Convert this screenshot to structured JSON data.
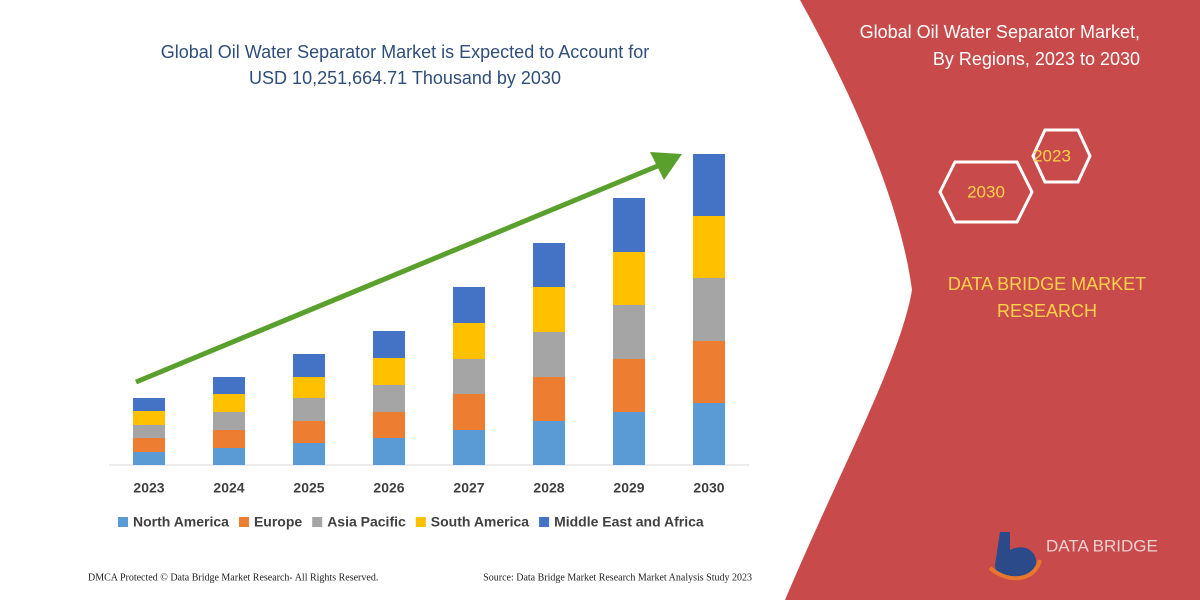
{
  "chart_data": {
    "type": "stacked_bar",
    "title": [
      "Global Oil Water Separator Market is Expected to Account for",
      "USD 10,251,664.71 Thousand by 2030"
    ],
    "categories": [
      "2023",
      "2024",
      "2025",
      "2026",
      "2027",
      "2028",
      "2029",
      "2030"
    ],
    "series": [
      {
        "name": "North America",
        "color": "#5b9bd5",
        "values": [
          13,
          17,
          22,
          27,
          35,
          44,
          53,
          62
        ]
      },
      {
        "name": "Europe",
        "color": "#ed7d31",
        "values": [
          14,
          18,
          22,
          26,
          36,
          44,
          53,
          62
        ]
      },
      {
        "name": "Asia Pacific",
        "color": "#a5a5a5",
        "values": [
          13,
          18,
          23,
          27,
          35,
          45,
          54,
          63
        ]
      },
      {
        "name": "South America",
        "color": "#ffc000",
        "values": [
          14,
          18,
          21,
          27,
          36,
          45,
          53,
          62
        ]
      },
      {
        "name": "Middle East and Africa",
        "color": "#4472c4",
        "values": [
          13,
          17,
          23,
          27,
          36,
          44,
          54,
          62
        ]
      }
    ],
    "ylim": [
      0,
      320
    ],
    "legend": "bottom"
  },
  "panel": {
    "title": [
      "Global Oil Water Separator Market,",
      "By Regions, 2023 to 2030"
    ],
    "hexagons": [
      "2023",
      "2030"
    ],
    "brand": [
      "DATA BRIDGE MARKET",
      "RESEARCH"
    ],
    "logo": "DATA BRIDGE"
  },
  "footer": {
    "left": "DMCA Protected © Data Bridge Market Research-  All Rights Reserved.",
    "right": "Source: Data Bridge Market Research  Market Analysis Study 2023"
  }
}
